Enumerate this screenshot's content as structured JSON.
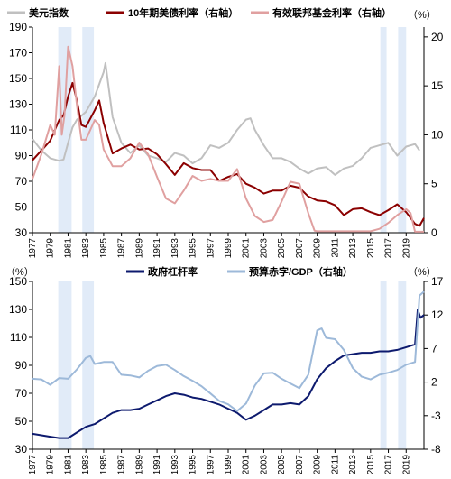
{
  "chart_data": [
    {
      "type": "line",
      "panel": "top",
      "x_range": [
        1977,
        2021
      ],
      "x_ticks": [
        "1977",
        "1979",
        "1981",
        "1983",
        "1985",
        "1987",
        "1989",
        "1991",
        "1993",
        "1995",
        "1997",
        "1999",
        "2001",
        "2003",
        "2005",
        "2007",
        "2009",
        "2011",
        "2013",
        "2015",
        "2017",
        "2019"
      ],
      "left_axis": {
        "range": [
          30,
          190
        ],
        "ticks": [
          30,
          50,
          70,
          90,
          110,
          130,
          150,
          170,
          190
        ]
      },
      "right_axis": {
        "unit": "（%）",
        "range": [
          0,
          21
        ],
        "ticks": [
          0,
          5,
          10,
          15,
          20
        ]
      },
      "shaded_periods": [
        [
          1979.9,
          1981.4
        ],
        [
          1982.6,
          1983.9
        ],
        [
          2016.1,
          2016.8
        ],
        [
          2018.1,
          2019.0
        ]
      ],
      "legend_placement": "top",
      "grid": false,
      "series": [
        {
          "name": "美元指数",
          "axis": "left",
          "color": "#c0c0c0",
          "x": [
            1977,
            1978,
            1979,
            1980,
            1980.5,
            1981,
            1981.5,
            1982,
            1983,
            1984,
            1985,
            1985.2,
            1986,
            1987,
            1988,
            1989,
            1990,
            1991,
            1992,
            1993,
            1994,
            1995,
            1996,
            1997,
            1998,
            1999,
            2000,
            2001,
            2001.5,
            2002,
            2003,
            2004,
            2005,
            2006,
            2007,
            2008,
            2009,
            2010,
            2011,
            2012,
            2013,
            2014,
            2015,
            2016,
            2017,
            2018,
            2019,
            2020,
            2020.5
          ],
          "values": [
            103,
            94,
            88,
            86,
            87,
            100,
            112,
            118,
            124,
            136,
            155,
            162,
            120,
            100,
            92,
            98,
            90,
            88,
            85,
            92,
            90,
            84,
            88,
            98,
            96,
            100,
            110,
            118,
            119,
            110,
            98,
            88,
            88,
            85,
            80,
            76,
            80,
            81,
            75,
            80,
            82,
            88,
            96,
            98,
            100,
            90,
            97,
            99,
            94
          ]
        },
        {
          "name": "10年期美债利率（右轴）",
          "axis": "right",
          "color": "#8b0000",
          "x": [
            1977,
            1978,
            1979,
            1980,
            1980.5,
            1981,
            1981.5,
            1982,
            1982.5,
            1983,
            1984,
            1984.5,
            1985,
            1986,
            1987,
            1988,
            1989,
            1990,
            1991,
            1992,
            1993,
            1994,
            1995,
            1996,
            1997,
            1998,
            1999,
            2000,
            2001,
            2002,
            2003,
            2004,
            2005,
            2006,
            2007,
            2008,
            2009,
            2010,
            2011,
            2012,
            2013,
            2014,
            2015,
            2016,
            2017,
            2018,
            2019,
            2020,
            2020.5,
            2021
          ],
          "values": [
            7.4,
            8.4,
            9.4,
            11.5,
            12,
            13.9,
            15.3,
            13.5,
            11,
            10.8,
            12.5,
            13.5,
            11.2,
            8.1,
            8.6,
            9,
            8.5,
            8.6,
            8,
            7,
            5.9,
            7.1,
            6.6,
            6.4,
            6.4,
            5.3,
            5.7,
            6.0,
            5.0,
            4.6,
            4.0,
            4.3,
            4.3,
            4.8,
            4.6,
            3.7,
            3.3,
            3.2,
            2.8,
            1.8,
            2.4,
            2.5,
            2.1,
            1.8,
            2.3,
            2.9,
            2.1,
            0.9,
            0.7,
            1.5
          ]
        },
        {
          "name": "有效联邦基金利率（右轴）",
          "axis": "right",
          "color": "#e0a0a0",
          "x": [
            1977,
            1978,
            1979,
            1979.5,
            1980,
            1980.3,
            1980.6,
            1981,
            1981.5,
            1982,
            1982.5,
            1983,
            1984,
            1984.5,
            1985,
            1986,
            1987,
            1988,
            1989,
            1990,
            1991,
            1992,
            1993,
            1994,
            1995,
            1996,
            1997,
            1998,
            1999,
            2000,
            2001,
            2002,
            2003,
            2004,
            2005,
            2006,
            2007,
            2008,
            2008.7,
            2009,
            2015,
            2016,
            2017,
            2018,
            2019,
            2019.5,
            2020,
            2020.5,
            2021
          ],
          "values": [
            5.5,
            8,
            11,
            10,
            17,
            10,
            12,
            19,
            17,
            13,
            9.5,
            9.5,
            11.5,
            11,
            8.5,
            6.8,
            6.8,
            7.6,
            9.2,
            8,
            5.7,
            3.5,
            3,
            4.3,
            5.8,
            5.3,
            5.5,
            5.3,
            5.3,
            6.5,
            3.5,
            1.7,
            1.1,
            1.3,
            3.2,
            5.2,
            5.0,
            2.0,
            0.2,
            0.15,
            0.15,
            0.4,
            1.0,
            1.8,
            2.4,
            2.0,
            0.1,
            0.1,
            0.1
          ]
        }
      ]
    },
    {
      "type": "line",
      "panel": "bottom",
      "x_range": [
        1977,
        2021
      ],
      "x_ticks": [
        "1977",
        "1979",
        "1981",
        "1983",
        "1985",
        "1987",
        "1989",
        "1991",
        "1993",
        "1995",
        "1997",
        "1999",
        "2001",
        "2003",
        "2005",
        "2007",
        "2009",
        "2011",
        "2013",
        "2015",
        "2017",
        "2019"
      ],
      "left_axis": {
        "unit": "（%）",
        "range": [
          30,
          150
        ],
        "ticks": [
          30,
          50,
          70,
          90,
          110,
          130,
          150
        ]
      },
      "right_axis": {
        "unit": "（%）",
        "range": [
          -8,
          17
        ],
        "ticks": [
          -8,
          -3,
          2,
          7,
          12,
          17
        ]
      },
      "shaded_periods": [
        [
          1979.9,
          1981.4
        ],
        [
          1982.6,
          1983.9
        ],
        [
          2016.1,
          2016.8
        ],
        [
          2018.1,
          2019.0
        ]
      ],
      "legend_placement": "top",
      "grid": false,
      "series": [
        {
          "name": "政府杠杆率",
          "axis": "left",
          "color": "#0d1a6e",
          "x": [
            1977,
            1978,
            1979,
            1980,
            1981,
            1982,
            1983,
            1984,
            1985,
            1986,
            1987,
            1988,
            1989,
            1990,
            1991,
            1992,
            1993,
            1994,
            1995,
            1996,
            1997,
            1998,
            1999,
            2000,
            2001,
            2002,
            2003,
            2004,
            2005,
            2006,
            2007,
            2008,
            2009,
            2010,
            2011,
            2012,
            2013,
            2014,
            2015,
            2016,
            2017,
            2018,
            2019,
            2020,
            2020.3,
            2020.6,
            2021
          ],
          "values": [
            41,
            40,
            39,
            38,
            38,
            42,
            46,
            48,
            52,
            56,
            58,
            58,
            59,
            62,
            65,
            68,
            70,
            69,
            67,
            66,
            64,
            62,
            59,
            56,
            51,
            54,
            58,
            62,
            62,
            63,
            62,
            68,
            80,
            88,
            93,
            97,
            98,
            99,
            99,
            100,
            100,
            101,
            103,
            105,
            130,
            124,
            126
          ]
        },
        {
          "name": "预算赤字/GDP（右轴）",
          "axis": "right",
          "color": "#9db9d9",
          "x": [
            1977,
            1978,
            1979,
            1980,
            1981,
            1982,
            1983,
            1983.5,
            1984,
            1985,
            1986,
            1987,
            1988,
            1989,
            1990,
            1991,
            1992,
            1993,
            1994,
            1995,
            1996,
            1997,
            1998,
            1999,
            2000,
            2001,
            2002,
            2003,
            2004,
            2005,
            2006,
            2007,
            2008,
            2009,
            2009.5,
            2010,
            2011,
            2012,
            2013,
            2014,
            2015,
            2016,
            2017,
            2018,
            2019,
            2020,
            2020.5,
            2021
          ],
          "values": [
            2.5,
            2.4,
            1.6,
            2.6,
            2.5,
            3.9,
            5.6,
            5.9,
            4.7,
            5.0,
            5.0,
            3.1,
            3.0,
            2.7,
            3.7,
            4.4,
            4.6,
            3.8,
            2.9,
            2.2,
            1.4,
            0.3,
            -0.8,
            -1.3,
            -2.3,
            -1.2,
            1.5,
            3.3,
            3.4,
            2.5,
            1.8,
            1.1,
            3.1,
            9.7,
            10.0,
            8.6,
            8.4,
            6.8,
            4.1,
            2.8,
            2.4,
            3.1,
            3.4,
            3.8,
            4.6,
            5.0,
            14.9,
            15.5
          ]
        }
      ]
    }
  ]
}
